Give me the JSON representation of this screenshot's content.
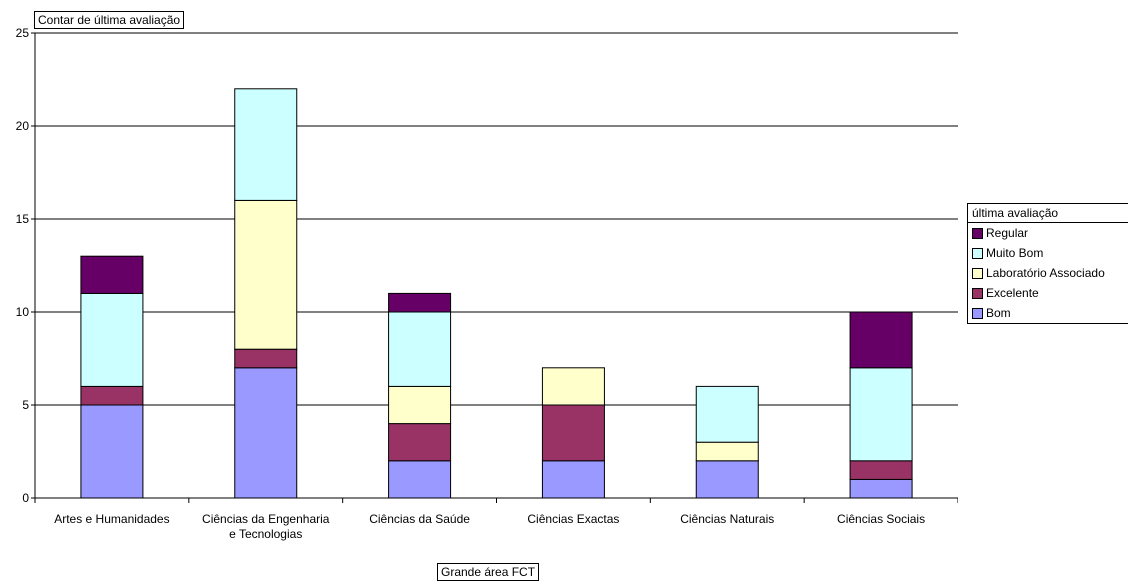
{
  "field_buttons": {
    "data_field": "Contar de última avaliação",
    "category_field": "Grande área FCT"
  },
  "chart_data": {
    "type": "bar",
    "stacked": true,
    "categories": [
      "Artes e Humanidades",
      "Ciências da Engenharia e Tecnologias",
      "Ciências da Saúde",
      "Ciências Exactas",
      "Ciências Naturais",
      "Ciências Sociais"
    ],
    "category_lines": [
      [
        "Artes e Humanidades"
      ],
      [
        "Ciências da Engenharia",
        "e Tecnologias"
      ],
      [
        "Ciências da Saúde"
      ],
      [
        "Ciências Exactas"
      ],
      [
        "Ciências Naturais"
      ],
      [
        "Ciências Sociais"
      ]
    ],
    "series": [
      {
        "name": "Bom",
        "color": "#9999ff",
        "values": [
          5,
          7,
          2,
          2,
          2,
          1
        ]
      },
      {
        "name": "Excelente",
        "color": "#993366",
        "values": [
          1,
          1,
          2,
          3,
          0,
          1
        ]
      },
      {
        "name": "Laboratório Associado",
        "color": "#ffffcc",
        "values": [
          0,
          8,
          2,
          2,
          1,
          0
        ]
      },
      {
        "name": "Muito Bom",
        "color": "#ccffff",
        "values": [
          5,
          6,
          4,
          0,
          3,
          5
        ]
      },
      {
        "name": "Regular",
        "color": "#660066",
        "values": [
          2,
          0,
          1,
          0,
          0,
          3
        ]
      }
    ],
    "ylim": [
      0,
      25
    ],
    "yticks": [
      0,
      5,
      10,
      15,
      20,
      25
    ],
    "grid": true,
    "legend": {
      "title": "última avaliação",
      "placement": "right",
      "order": [
        "Regular",
        "Muito Bom",
        "Laboratório Associado",
        "Excelente",
        "Bom"
      ]
    }
  }
}
